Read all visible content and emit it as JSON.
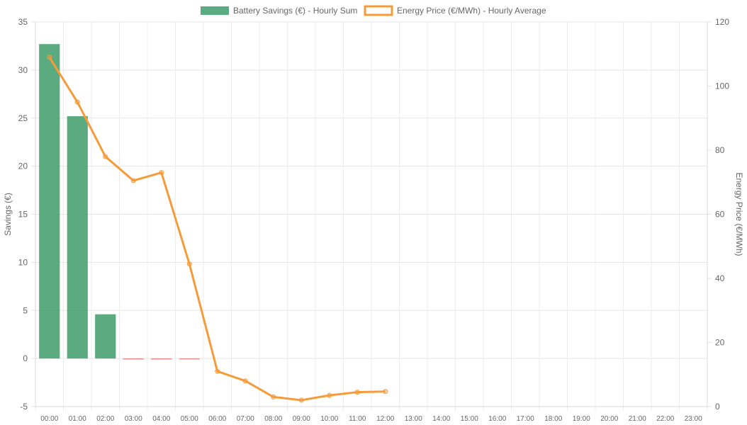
{
  "chart_data": {
    "type": "bar",
    "categories": [
      "00:00",
      "01:00",
      "02:00",
      "03:00",
      "04:00",
      "05:00",
      "06:00",
      "07:00",
      "08:00",
      "09:00",
      "10:00",
      "11:00",
      "12:00",
      "13:00",
      "14:00",
      "15:00",
      "16:00",
      "17:00",
      "18:00",
      "19:00",
      "20:00",
      "21:00",
      "22:00",
      "23:00"
    ],
    "series": [
      {
        "name": "Battery Savings (€) - Hourly Sum",
        "type": "bar",
        "axis": "left",
        "color_positive": "#3f9c6a",
        "color_negative": "#e57373",
        "values": [
          32.7,
          25.2,
          4.6,
          -0.1,
          -0.1,
          -0.05,
          null,
          null,
          null,
          null,
          null,
          null,
          null,
          null,
          null,
          null,
          null,
          null,
          null,
          null,
          null,
          null,
          null,
          null
        ]
      },
      {
        "name": "Energy Price (€/MWh) - Hourly Average",
        "type": "line",
        "axis": "right",
        "color": "#f59b3a",
        "values": [
          109,
          95,
          78,
          70.5,
          73,
          44.5,
          11,
          8,
          3,
          2,
          3.5,
          4.5,
          4.7,
          null,
          null,
          null,
          null,
          null,
          null,
          null,
          null,
          null,
          null,
          null
        ]
      }
    ],
    "left_axis": {
      "label": "Savings (€)",
      "min": -5,
      "max": 35,
      "ticks": [
        "-5",
        "0",
        "5",
        "10",
        "15",
        "20",
        "25",
        "30",
        "35"
      ]
    },
    "right_axis": {
      "label": "Energy Price (€/MWh)",
      "min": 0,
      "max": 120,
      "ticks": [
        "0",
        "20",
        "40",
        "60",
        "80",
        "100",
        "120"
      ]
    },
    "grid": true,
    "legend_position": "top-center"
  }
}
